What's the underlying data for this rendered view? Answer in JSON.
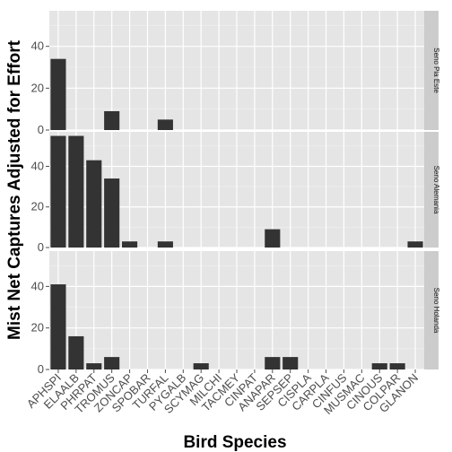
{
  "chart_data": {
    "type": "bar",
    "xlabel": "Bird Species",
    "ylabel": "Mist Net Captures Adjusted for Effort",
    "ylim": [
      0,
      57
    ],
    "yticks": [
      0,
      20,
      40
    ],
    "categories": [
      "APHSPI",
      "ELAALB",
      "PHRPAT",
      "TROMUS",
      "ZONCAP",
      "SPOBAR",
      "TURFAL",
      "PYGALB",
      "SCYMAG",
      "MILCHI",
      "TACMEY",
      "CINPAT",
      "ANAPAR",
      "SEPSEP",
      "CISPLA",
      "CARPLA",
      "CINFUS",
      "MUSMAC",
      "CINOUS",
      "COLPAR",
      "GLANON"
    ],
    "grid": true,
    "bar_color": "#333333",
    "panel_bg": "#e5e5e5",
    "strip_bg": "#cccccc",
    "facets": [
      {
        "strip": "Seno Pia Este",
        "values": [
          34,
          0,
          0,
          9,
          0,
          0,
          5,
          0,
          0,
          0,
          0,
          0,
          0,
          0,
          0,
          0,
          0,
          0,
          0,
          0,
          0
        ]
      },
      {
        "strip": "Seno Alemania",
        "values": [
          55,
          55,
          43,
          34,
          3,
          0,
          3,
          0,
          0,
          0,
          0,
          0,
          9,
          0,
          0,
          0,
          0,
          0,
          0,
          0,
          3
        ]
      },
      {
        "strip": "Seno Holanda",
        "values": [
          41,
          16,
          3,
          6,
          0,
          0,
          0,
          0,
          3,
          0,
          0,
          0,
          6,
          6,
          0,
          0,
          0,
          0,
          3,
          3,
          0
        ]
      }
    ]
  }
}
